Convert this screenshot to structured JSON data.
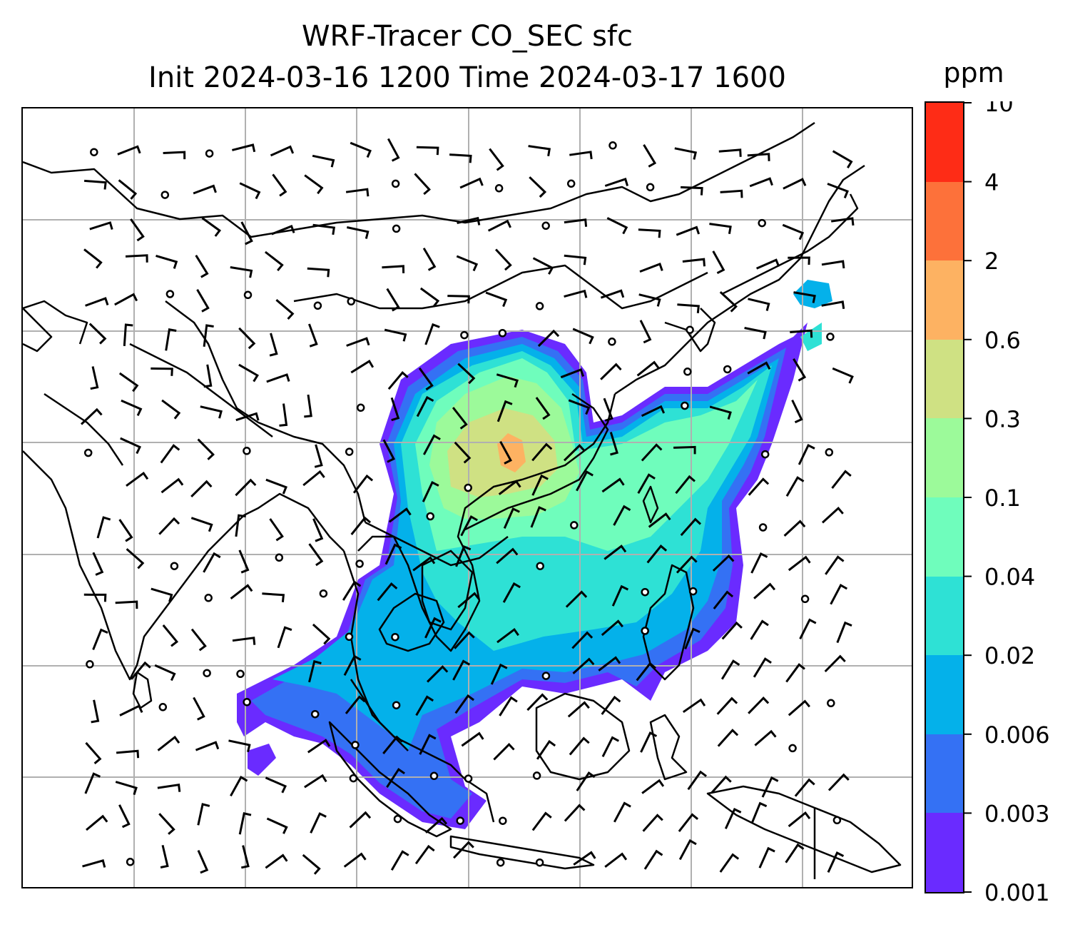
{
  "title": {
    "line1": "WRF-Tracer CO_SEC sfc",
    "line2": "Init 2024-03-16 1200 Time 2024-03-17 1600"
  },
  "colorbar": {
    "unit": "ppm",
    "levels": [
      "0.001",
      "0.003",
      "0.006",
      "0.02",
      "0.04",
      "0.1",
      "0.3",
      "0.6",
      "2",
      "4",
      "10"
    ],
    "colors": [
      "#6a2bff",
      "#3471f4",
      "#04b1ea",
      "#2ee1d5",
      "#6ffdbc",
      "#9cfa9a",
      "#cfe183",
      "#fdb262",
      "#fd713a",
      "#fe2c16"
    ]
  },
  "map": {
    "graticule": "on",
    "features": [
      "coastlines",
      "country-borders",
      "wind-barbs",
      "tracer-contours"
    ]
  }
}
